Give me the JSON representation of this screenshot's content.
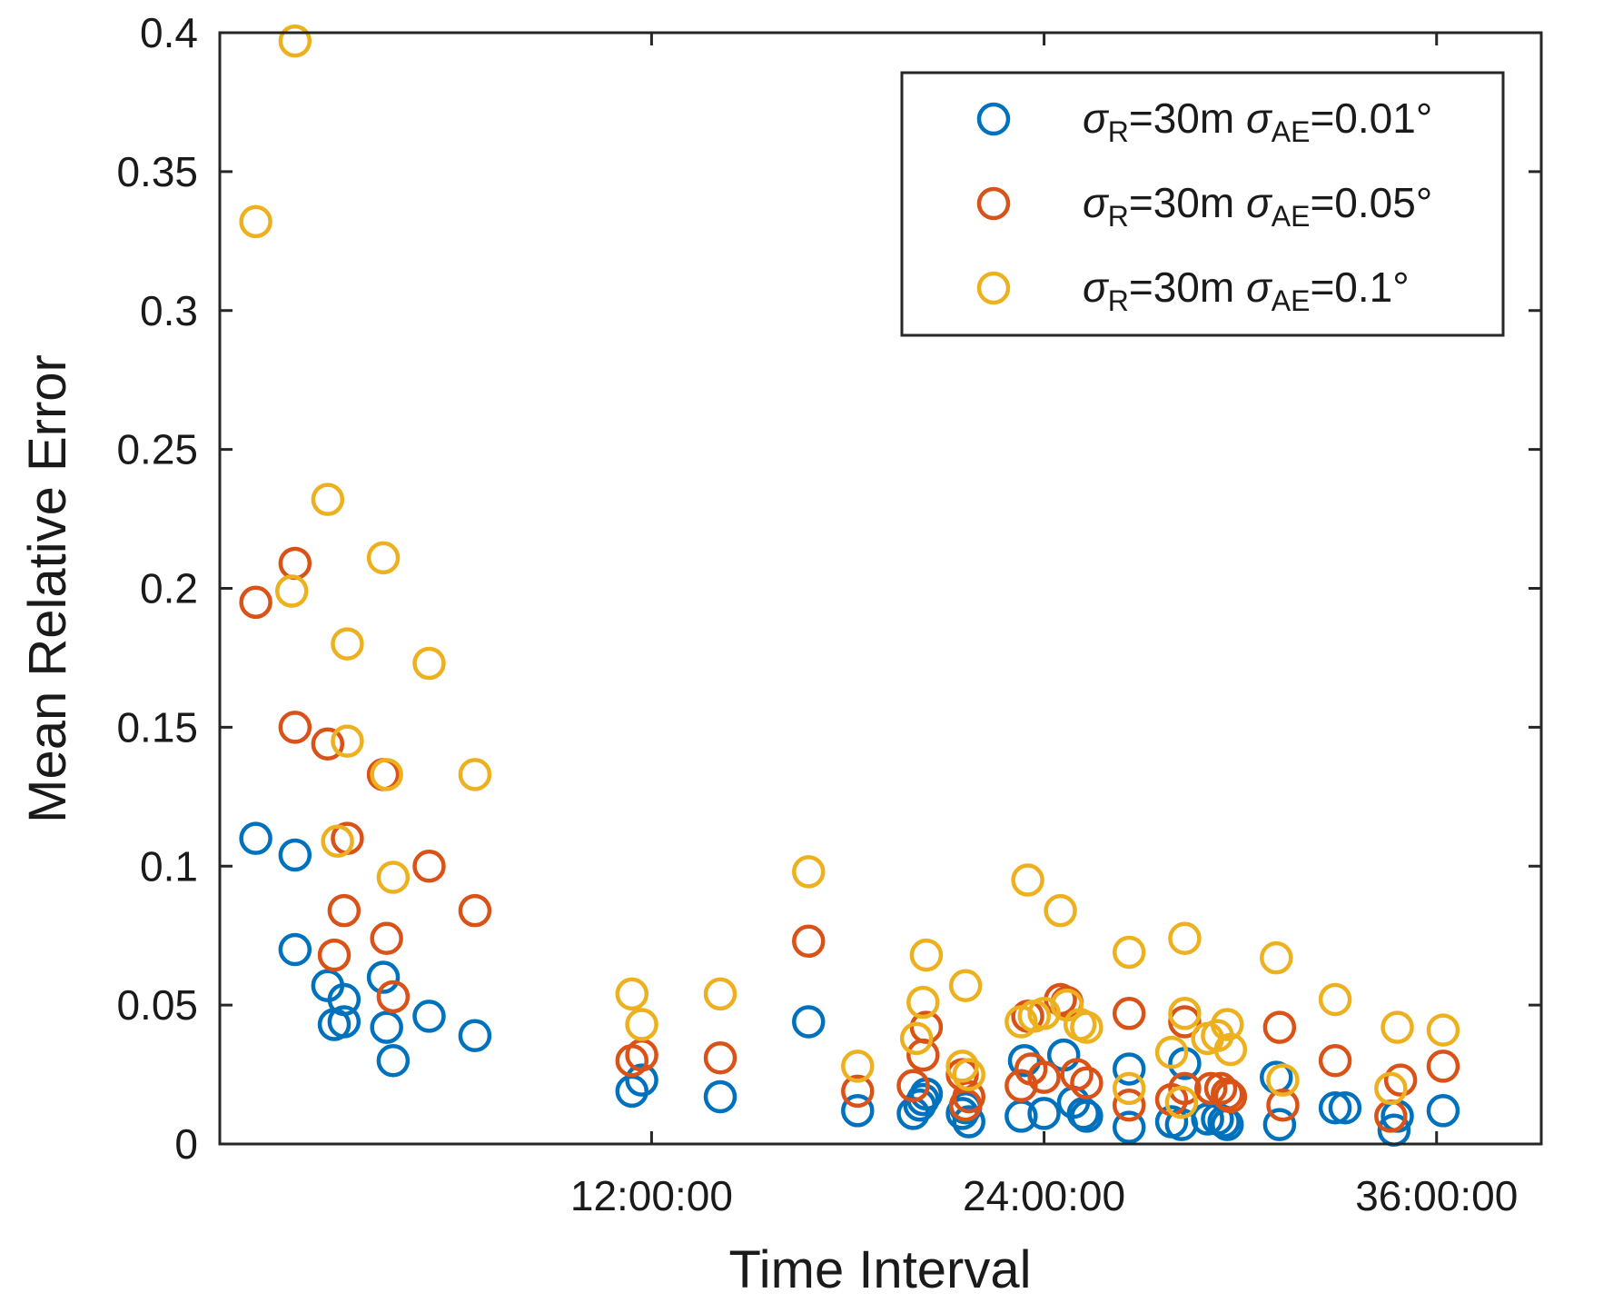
{
  "chart_data": {
    "type": "scatter",
    "title": "",
    "xlabel": "Time Interval",
    "ylabel": "Mean Relative Error",
    "x_unit": "hours",
    "xlim": [
      -1.2,
      39.2
    ],
    "ylim": [
      0,
      0.4
    ],
    "x_ticks": [
      {
        "value": 12,
        "label": "12:00:00"
      },
      {
        "value": 24,
        "label": "24:00:00"
      },
      {
        "value": 36,
        "label": "36:00:00"
      }
    ],
    "y_ticks": [
      {
        "value": 0,
        "label": "0"
      },
      {
        "value": 0.05,
        "label": "0.05"
      },
      {
        "value": 0.1,
        "label": "0.1"
      },
      {
        "value": 0.15,
        "label": "0.15"
      },
      {
        "value": 0.2,
        "label": "0.2"
      },
      {
        "value": 0.25,
        "label": "0.25"
      },
      {
        "value": 0.3,
        "label": "0.3"
      },
      {
        "value": 0.35,
        "label": "0.35"
      },
      {
        "value": 0.4,
        "label": "0.4"
      }
    ],
    "grid": false,
    "legend_position": "top-right",
    "series": [
      {
        "name": "σR=30m σAE=0.01°",
        "legend": {
          "sym1": "σ",
          "sub1": "R",
          "mid": "=30m ",
          "sym2": "σ",
          "sub2": "AE",
          "end": "=0.01°"
        },
        "color": "#0072BD",
        "points": [
          [
            -0.1,
            0.11
          ],
          [
            1.1,
            0.104
          ],
          [
            1.1,
            0.07
          ],
          [
            2.1,
            0.057
          ],
          [
            2.3,
            0.043
          ],
          [
            2.6,
            0.044
          ],
          [
            2.6,
            0.052
          ],
          [
            3.8,
            0.06
          ],
          [
            3.9,
            0.042
          ],
          [
            4.1,
            0.03
          ],
          [
            5.2,
            0.046
          ],
          [
            6.6,
            0.039
          ],
          [
            11.4,
            0.019
          ],
          [
            11.7,
            0.023
          ],
          [
            14.1,
            0.017
          ],
          [
            16.8,
            0.044
          ],
          [
            18.3,
            0.012
          ],
          [
            20.0,
            0.011
          ],
          [
            20.2,
            0.014
          ],
          [
            20.3,
            0.016
          ],
          [
            20.4,
            0.018
          ],
          [
            21.5,
            0.011
          ],
          [
            21.6,
            0.013
          ],
          [
            21.7,
            0.008
          ],
          [
            23.3,
            0.01
          ],
          [
            23.4,
            0.03
          ],
          [
            24.0,
            0.011
          ],
          [
            24.6,
            0.032
          ],
          [
            24.9,
            0.015
          ],
          [
            25.2,
            0.011
          ],
          [
            25.3,
            0.01
          ],
          [
            26.6,
            0.027
          ],
          [
            26.6,
            0.006
          ],
          [
            27.9,
            0.008
          ],
          [
            28.2,
            0.007
          ],
          [
            28.3,
            0.029
          ],
          [
            29.0,
            0.009
          ],
          [
            29.3,
            0.009
          ],
          [
            29.5,
            0.008
          ],
          [
            29.6,
            0.007
          ],
          [
            31.1,
            0.024
          ],
          [
            31.2,
            0.007
          ],
          [
            32.9,
            0.013
          ],
          [
            33.2,
            0.013
          ],
          [
            34.7,
            0.005
          ],
          [
            34.8,
            0.01
          ],
          [
            36.2,
            0.012
          ]
        ]
      },
      {
        "name": "σR=30m σAE=0.05°",
        "legend": {
          "sym1": "σ",
          "sub1": "R",
          "mid": "=30m ",
          "sym2": "σ",
          "sub2": "AE",
          "end": "=0.05°"
        },
        "color": "#D95319",
        "points": [
          [
            -0.1,
            0.195
          ],
          [
            1.1,
            0.209
          ],
          [
            1.1,
            0.15
          ],
          [
            2.1,
            0.144
          ],
          [
            2.3,
            0.068
          ],
          [
            2.6,
            0.084
          ],
          [
            2.7,
            0.11
          ],
          [
            3.8,
            0.133
          ],
          [
            3.9,
            0.074
          ],
          [
            4.1,
            0.053
          ],
          [
            5.2,
            0.1
          ],
          [
            6.6,
            0.084
          ],
          [
            11.4,
            0.03
          ],
          [
            11.7,
            0.032
          ],
          [
            14.1,
            0.031
          ],
          [
            16.8,
            0.073
          ],
          [
            18.3,
            0.019
          ],
          [
            20.0,
            0.021
          ],
          [
            20.3,
            0.032
          ],
          [
            20.4,
            0.042
          ],
          [
            21.5,
            0.025
          ],
          [
            21.6,
            0.014
          ],
          [
            21.7,
            0.017
          ],
          [
            23.3,
            0.021
          ],
          [
            23.5,
            0.046
          ],
          [
            23.6,
            0.027
          ],
          [
            24.0,
            0.024
          ],
          [
            24.5,
            0.052
          ],
          [
            24.7,
            0.051
          ],
          [
            25.0,
            0.025
          ],
          [
            25.3,
            0.022
          ],
          [
            26.6,
            0.047
          ],
          [
            26.6,
            0.014
          ],
          [
            27.9,
            0.016
          ],
          [
            28.3,
            0.02
          ],
          [
            28.3,
            0.044
          ],
          [
            29.1,
            0.02
          ],
          [
            29.4,
            0.02
          ],
          [
            29.6,
            0.018
          ],
          [
            29.7,
            0.017
          ],
          [
            31.2,
            0.042
          ],
          [
            31.3,
            0.014
          ],
          [
            32.9,
            0.03
          ],
          [
            34.6,
            0.01
          ],
          [
            34.9,
            0.023
          ],
          [
            36.2,
            0.028
          ]
        ]
      },
      {
        "name": "σR=30m σAE=0.1°",
        "legend": {
          "sym1": "σ",
          "sub1": "R",
          "mid": "=30m ",
          "sym2": "σ",
          "sub2": "AE",
          "end": "=0.1°"
        },
        "color": "#EDB120",
        "points": [
          [
            -0.1,
            0.332
          ],
          [
            1.1,
            0.397
          ],
          [
            1.0,
            0.199
          ],
          [
            2.1,
            0.232
          ],
          [
            2.4,
            0.109
          ],
          [
            2.7,
            0.18
          ],
          [
            2.7,
            0.145
          ],
          [
            3.8,
            0.211
          ],
          [
            3.9,
            0.133
          ],
          [
            4.1,
            0.096
          ],
          [
            5.2,
            0.173
          ],
          [
            6.6,
            0.133
          ],
          [
            11.4,
            0.054
          ],
          [
            11.7,
            0.043
          ],
          [
            14.1,
            0.054
          ],
          [
            16.8,
            0.098
          ],
          [
            18.3,
            0.028
          ],
          [
            20.1,
            0.038
          ],
          [
            20.3,
            0.051
          ],
          [
            20.4,
            0.068
          ],
          [
            21.5,
            0.028
          ],
          [
            21.6,
            0.057
          ],
          [
            21.7,
            0.025
          ],
          [
            23.3,
            0.044
          ],
          [
            23.5,
            0.095
          ],
          [
            23.7,
            0.046
          ],
          [
            24.0,
            0.047
          ],
          [
            24.5,
            0.084
          ],
          [
            24.7,
            0.05
          ],
          [
            25.1,
            0.043
          ],
          [
            25.3,
            0.042
          ],
          [
            26.6,
            0.069
          ],
          [
            26.6,
            0.02
          ],
          [
            27.9,
            0.033
          ],
          [
            28.2,
            0.015
          ],
          [
            28.3,
            0.074
          ],
          [
            28.3,
            0.047
          ],
          [
            29.0,
            0.038
          ],
          [
            29.3,
            0.039
          ],
          [
            29.6,
            0.043
          ],
          [
            29.7,
            0.034
          ],
          [
            31.1,
            0.067
          ],
          [
            31.3,
            0.023
          ],
          [
            32.9,
            0.052
          ],
          [
            34.6,
            0.02
          ],
          [
            34.8,
            0.042
          ],
          [
            36.2,
            0.041
          ]
        ]
      }
    ]
  }
}
